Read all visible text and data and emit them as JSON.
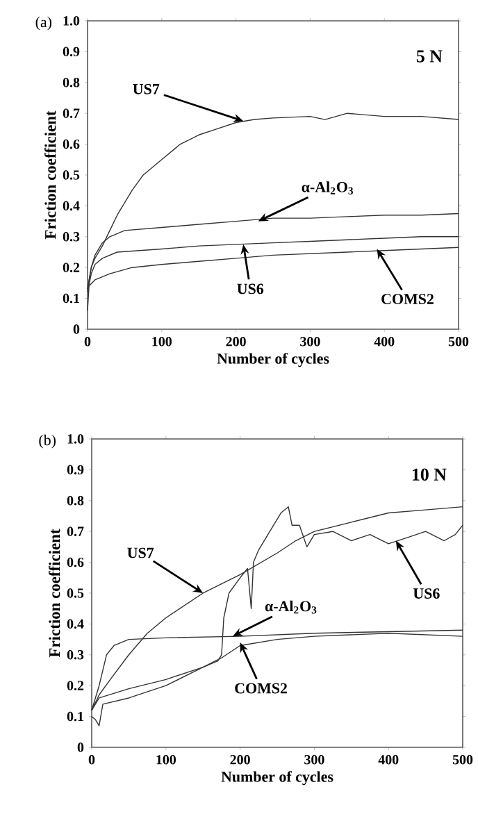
{
  "chart_data": [
    {
      "type": "line",
      "subtitle": "(a)",
      "title": "5 N",
      "xlabel": "Number of cycles",
      "ylabel": "Friction coefficient",
      "xlim": [
        0,
        500
      ],
      "ylim": [
        0,
        1
      ],
      "xticks": [
        0,
        100,
        200,
        300,
        400,
        500
      ],
      "yticks": [
        0,
        0.1,
        0.2,
        0.3,
        0.4,
        0.5,
        0.6,
        0.7,
        0.8,
        0.9,
        {
          "value": 1,
          "label": "1.0"
        }
      ],
      "series": [
        {
          "color": "#333333",
          "x": [
            0,
            5,
            10,
            20,
            30,
            40,
            50,
            60,
            75,
            100,
            125,
            150,
            175,
            200,
            225,
            250,
            300,
            320,
            350,
            400,
            450,
            500
          ],
          "values": [
            0.13,
            0.2,
            0.23,
            0.27,
            0.32,
            0.37,
            0.41,
            0.45,
            0.5,
            0.55,
            0.6,
            0.63,
            0.65,
            0.67,
            0.68,
            0.685,
            0.69,
            0.68,
            0.7,
            0.69,
            0.69,
            0.68
          ]
        },
        {
          "color": "#333333",
          "x": [
            0,
            5,
            10,
            20,
            30,
            50,
            100,
            150,
            200,
            250,
            300,
            350,
            400,
            450,
            500
          ],
          "values": [
            0.13,
            0.2,
            0.24,
            0.28,
            0.3,
            0.32,
            0.33,
            0.34,
            0.35,
            0.36,
            0.36,
            0.365,
            0.37,
            0.37,
            0.375
          ]
        },
        {
          "color": "#333333",
          "x": [
            0,
            5,
            10,
            20,
            40,
            100,
            150,
            200,
            250,
            300,
            350,
            400,
            450,
            500
          ],
          "values": [
            0.12,
            0.18,
            0.21,
            0.23,
            0.25,
            0.26,
            0.27,
            0.275,
            0.28,
            0.285,
            0.29,
            0.295,
            0.3,
            0.3
          ]
        },
        {
          "color": "#333333",
          "x": [
            0,
            2,
            10,
            30,
            60,
            100,
            150,
            200,
            250,
            300,
            350,
            400,
            450,
            500
          ],
          "values": [
            0.06,
            0.14,
            0.16,
            0.18,
            0.2,
            0.21,
            0.22,
            0.23,
            0.24,
            0.245,
            0.25,
            0.255,
            0.26,
            0.265
          ]
        }
      ],
      "annotations": [
        {
          "text": "US7",
          "x": 210,
          "y": 0.675
        },
        {
          "text": "α-Al$_{2}$O$_{3}$",
          "x": 230,
          "y": 0.35
        },
        {
          "text": "US6",
          "x": 210,
          "y": 0.275
        },
        {
          "text": "COMS2",
          "x": 390,
          "y": 0.26
        }
      ]
    },
    {
      "type": "line",
      "subtitle": "(b)",
      "title": "10 N",
      "xlabel": "Number of cycles",
      "ylabel": "Friction coefficient",
      "xlim": [
        0,
        500
      ],
      "ylim": [
        0,
        1
      ],
      "xticks": [
        0,
        100,
        200,
        300,
        400,
        500
      ],
      "yticks": [
        0,
        0.1,
        0.2,
        0.3,
        0.4,
        0.5,
        0.6,
        0.7,
        0.8,
        0.9,
        {
          "value": 1,
          "label": "1.0"
        }
      ],
      "series": [
        {
          "color": "#333333",
          "x": [
            0,
            10,
            25,
            50,
            75,
            100,
            150,
            200,
            250,
            275,
            300,
            350,
            400,
            450,
            500
          ],
          "values": [
            0.12,
            0.17,
            0.22,
            0.3,
            0.37,
            0.42,
            0.5,
            0.56,
            0.63,
            0.67,
            0.7,
            0.73,
            0.76,
            0.77,
            0.78
          ]
        },
        {
          "color": "#333333",
          "x": [
            0,
            10,
            20,
            30,
            50,
            100,
            200,
            300,
            400,
            500
          ],
          "values": [
            0.12,
            0.2,
            0.3,
            0.33,
            0.35,
            0.355,
            0.36,
            0.37,
            0.375,
            0.38
          ]
        },
        {
          "color": "#333333",
          "x": [
            0,
            10,
            50,
            100,
            150,
            170,
            175,
            178,
            185,
            200,
            210,
            215,
            218,
            225,
            240,
            255,
            265,
            270,
            280,
            290,
            300,
            325,
            350,
            375,
            400,
            425,
            450,
            475,
            490,
            500
          ],
          "values": [
            0.12,
            0.16,
            0.19,
            0.22,
            0.26,
            0.28,
            0.3,
            0.42,
            0.5,
            0.55,
            0.58,
            0.45,
            0.6,
            0.64,
            0.7,
            0.76,
            0.78,
            0.72,
            0.72,
            0.65,
            0.69,
            0.7,
            0.67,
            0.69,
            0.66,
            0.68,
            0.7,
            0.67,
            0.69,
            0.72
          ]
        },
        {
          "color": "#333333",
          "x": [
            0,
            5,
            10,
            15,
            50,
            100,
            150,
            175,
            200,
            250,
            300,
            400,
            500
          ],
          "values": [
            0.1,
            0.09,
            0.07,
            0.14,
            0.16,
            0.2,
            0.26,
            0.29,
            0.33,
            0.35,
            0.36,
            0.37,
            0.36
          ]
        }
      ],
      "annotations": [
        {
          "text": "US7",
          "x": 150,
          "y": 0.5
        },
        {
          "text": "α-Al$_{2}$O$_{3}$",
          "x": 190,
          "y": 0.36
        },
        {
          "text": "US6",
          "x": 410,
          "y": 0.67
        },
        {
          "text": "COMS2",
          "x": 200,
          "y": 0.34
        }
      ]
    }
  ]
}
